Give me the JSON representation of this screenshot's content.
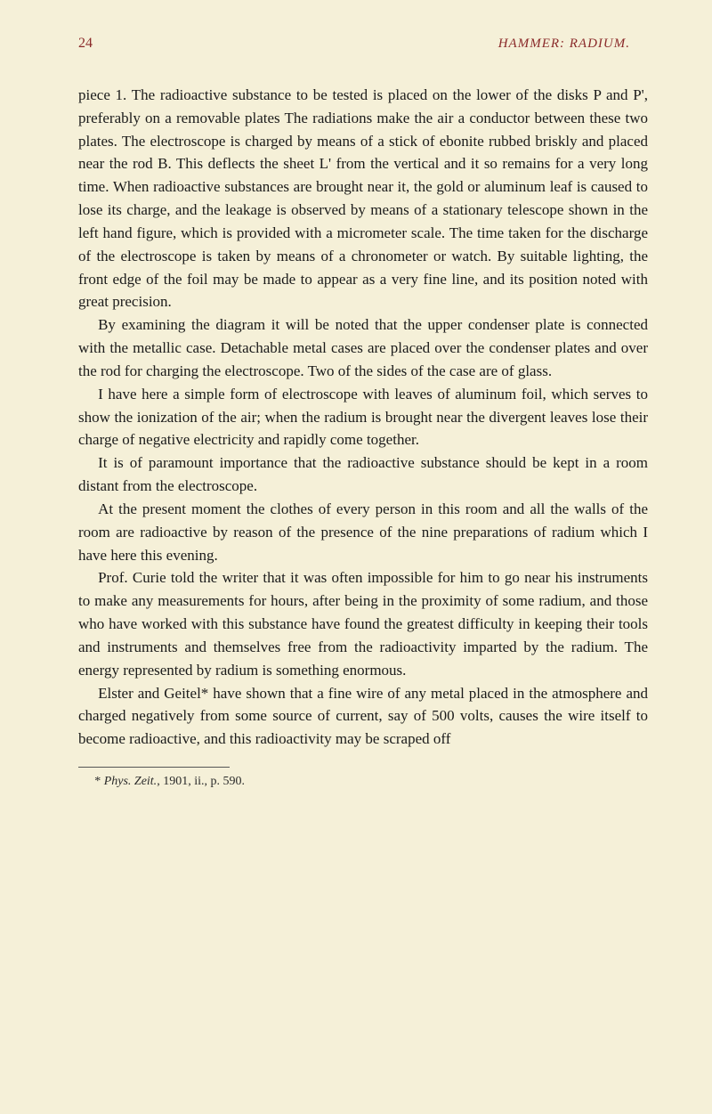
{
  "page_number": "24",
  "header_title": "HAMMER: RADIUM.",
  "paragraphs": [
    "piece 1. The radioactive substance to be tested is placed on the lower of the disks P and P', preferably on a removable plates The radiations make the air a conductor between these two plates. The electroscope is charged by means of a stick of ebonite rubbed briskly and placed near the rod B. This deflects the sheet L' from the vertical and it so remains for a very long time. When radioactive substances are brought near it, the gold or aluminum leaf is caused to lose its charge, and the leakage is observed by means of a stationary telescope shown in the left hand figure, which is provided with a micrometer scale. The time taken for the discharge of the electroscope is taken by means of a chronometer or watch. By suitable lighting, the front edge of the foil may be made to appear as a very fine line, and its position noted with great precision.",
    "By examining the diagram it will be noted that the upper condenser plate is connected with the metallic case. Detachable metal cases are placed over the condenser plates and over the rod for charging the electroscope. Two of the sides of the case are of glass.",
    "I have here a simple form of electroscope with leaves of aluminum foil, which serves to show the ionization of the air; when the radium is brought near the divergent leaves lose their charge of negative electricity and rapidly come together.",
    "It is of paramount importance that the radioactive substance should be kept in a room distant from the electroscope.",
    "At the present moment the clothes of every person in this room and all the walls of the room are radioactive by reason of the presence of the nine preparations of radium which I have here this evening.",
    "Prof. Curie told the writer that it was often impossible for him to go near his instruments to make any measurements for hours, after being in the proximity of some radium, and those who have worked with this substance have found the greatest difficulty in keeping their tools and instruments and themselves free from the radioactivity imparted by the radium. The energy represented by radium is something enormous.",
    "Elster and Geitel* have shown that a fine wire of any metal placed in the atmosphere and charged negatively from some source of current, say of 500 volts, causes the wire itself to become radioactive, and this radioactivity may be scraped off"
  ],
  "footnote": "* Phys. Zeit., 1901, ii., p. 590."
}
